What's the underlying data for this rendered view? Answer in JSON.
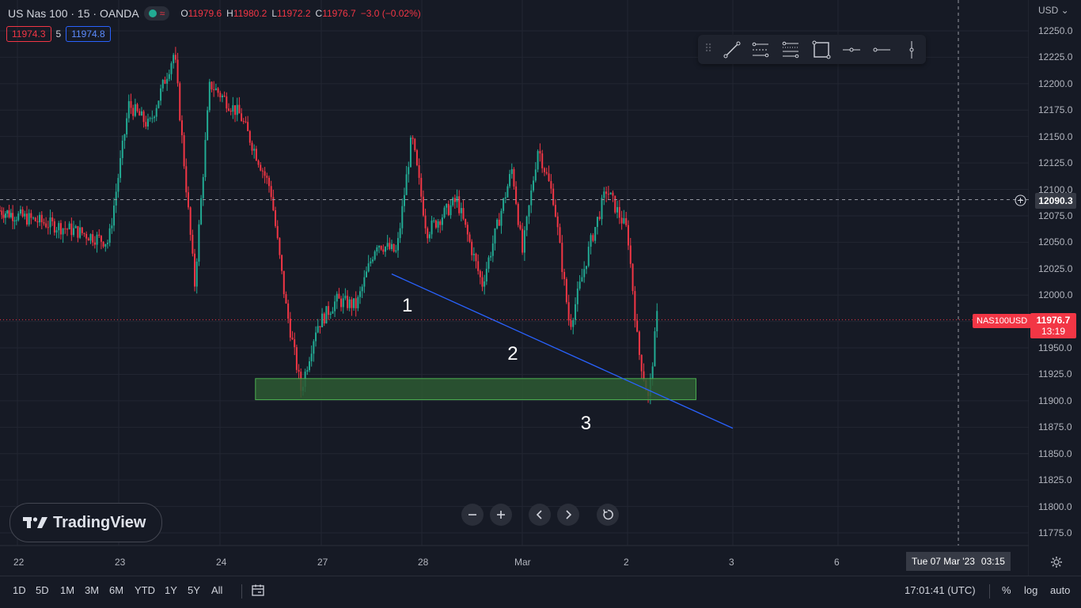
{
  "header": {
    "symbol": "US Nas 100 · 15 · OANDA",
    "ohlc": [
      {
        "k": "O",
        "v": "11979.6"
      },
      {
        "k": "H",
        "v": "11980.2"
      },
      {
        "k": "L",
        "v": "11972.2"
      },
      {
        "k": "C",
        "v": "11976.7"
      }
    ],
    "change": "−3.0 (−0.02%)",
    "bid": "11974.3",
    "spread": "5",
    "ask": "11974.8"
  },
  "axis": {
    "currency": "USD",
    "crosshair_price": "12090.3",
    "last_price": "11976.7",
    "countdown": "13:19",
    "symbol_tag": "NAS100USD",
    "crosshair_date": "Tue 07 Mar '23",
    "crosshair_time": "03:15"
  },
  "chart_data": {
    "type": "candlestick",
    "y_ticks": [
      11775,
      11800,
      11825,
      11850,
      11875,
      11900,
      11925,
      11950,
      11975,
      12000,
      12025,
      12050,
      12075,
      12100,
      12125,
      12150,
      12175,
      12200,
      12225,
      12250
    ],
    "y_tick_labels": [
      "11775.0",
      "11800.0",
      "11825.0",
      "11850.0",
      "11875.0",
      "11900.0",
      "11925.0",
      "11950.0",
      "11975.0",
      "12000.0",
      "12025.0",
      "12050.0",
      "12075.0",
      "12100.0",
      "12125.0",
      "12150.0",
      "12175.0",
      "12200.0",
      "12225.0",
      "12250.0"
    ],
    "x_tick_labels": [
      "22",
      "23",
      "24",
      "27",
      "28",
      "Mar",
      "2",
      "3",
      "6"
    ],
    "ylim": [
      11760,
      12265
    ],
    "price_path": [
      {
        "t": 21.8,
        "p": 12080
      },
      {
        "t": 22.2,
        "p": 12070
      },
      {
        "t": 22.6,
        "p": 12060
      },
      {
        "t": 22.9,
        "p": 12050
      },
      {
        "t": 23.1,
        "p": 12180
      },
      {
        "t": 23.3,
        "p": 12160
      },
      {
        "t": 23.55,
        "p": 12230
      },
      {
        "t": 23.75,
        "p": 12010
      },
      {
        "t": 23.9,
        "p": 12200
      },
      {
        "t": 24.2,
        "p": 12170
      },
      {
        "t": 24.5,
        "p": 12100
      },
      {
        "t": 24.65,
        "p": 11990
      },
      {
        "t": 24.8,
        "p": 11910
      },
      {
        "t": 24.95,
        "p": 11970
      },
      {
        "t": 25.15,
        "p": 11995
      },
      {
        "t": 25.35,
        "p": 11990
      },
      {
        "t": 25.55,
        "p": 12050
      },
      {
        "t": 25.75,
        "p": 12040
      },
      {
        "t": 25.9,
        "p": 12150
      },
      {
        "t": 26.05,
        "p": 12060
      },
      {
        "t": 26.35,
        "p": 12090
      },
      {
        "t": 26.6,
        "p": 12010
      },
      {
        "t": 26.9,
        "p": 12120
      },
      {
        "t": 27.0,
        "p": 12040
      },
      {
        "t": 27.15,
        "p": 12140
      },
      {
        "t": 27.3,
        "p": 12090
      },
      {
        "t": 27.45,
        "p": 11970
      },
      {
        "t": 27.65,
        "p": 12050
      },
      {
        "t": 27.8,
        "p": 12100
      },
      {
        "t": 28.0,
        "p": 12060
      },
      {
        "t": 28.1,
        "p": 11950
      },
      {
        "t": 28.2,
        "p": 11900
      },
      {
        "t": 28.28,
        "p": 11980
      }
    ],
    "support_zone": {
      "from": 11901,
      "to": 11921,
      "t_start": 24.35,
      "t_end": 28.65
    },
    "trendline": {
      "t1": 25.7,
      "p1": 12020,
      "t2": 29.0,
      "p2": 11874
    },
    "annotations": [
      {
        "label": "1",
        "t": 25.85,
        "p": 11990
      },
      {
        "label": "2",
        "t": 26.9,
        "p": 11944
      },
      {
        "label": "3",
        "t": 27.6,
        "p": 11878
      }
    ]
  },
  "bottom": {
    "periods": [
      "1D",
      "5D",
      "1M",
      "3M",
      "6M",
      "YTD",
      "1Y",
      "5Y",
      "All"
    ],
    "clock": "17:01:41 (UTC)",
    "options": [
      "%",
      "log",
      "auto"
    ]
  },
  "brand": {
    "name": "TradingView"
  },
  "colors": {
    "background": "#161a25",
    "up": "#22ab94",
    "down": "#f23645",
    "zone": "#2d5a33",
    "zone_border": "#4caf50",
    "trendline": "#2962ff"
  }
}
